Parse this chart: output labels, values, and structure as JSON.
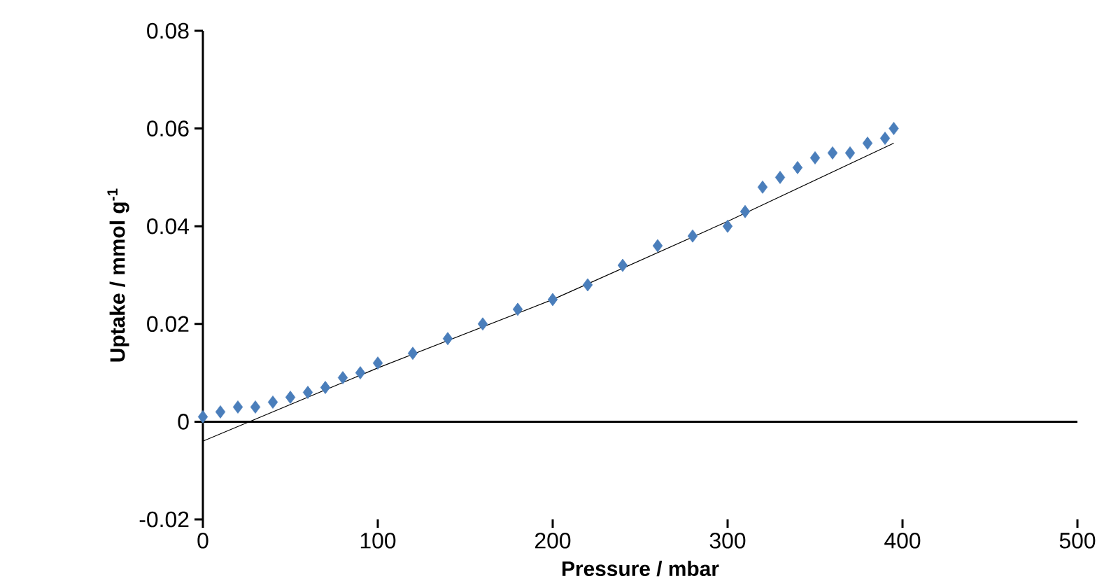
{
  "chart_data": {
    "type": "scatter",
    "xlabel": "Pressure / mbar",
    "ylabel": "Uptake / mmol g$^{-1}$",
    "xlim": [
      0,
      500
    ],
    "ylim": [
      -0.02,
      0.08
    ],
    "xticks": [
      0,
      100,
      200,
      300,
      400,
      500
    ],
    "yticks": [
      -0.02,
      0,
      0.02,
      0.04,
      0.06,
      0.08
    ],
    "series": [
      {
        "color": "#4a7ebb",
        "marker": "diamond",
        "x": [
          0,
          10,
          20,
          30,
          40,
          50,
          60,
          70,
          80,
          90,
          100,
          120,
          140,
          160,
          180,
          200,
          220,
          240,
          260,
          280,
          300,
          310,
          320,
          330,
          340,
          350,
          360,
          370,
          380,
          390,
          395
        ],
        "values": [
          0.001,
          0.002,
          0.003,
          0.003,
          0.004,
          0.005,
          0.006,
          0.007,
          0.009,
          0.01,
          0.012,
          0.014,
          0.017,
          0.02,
          0.023,
          0.025,
          0.028,
          0.032,
          0.036,
          0.038,
          0.04,
          0.043,
          0.048,
          0.05,
          0.052,
          0.054,
          0.055,
          0.055,
          0.057,
          0.058,
          0.06
        ]
      },
      {
        "type": "line",
        "color": "#000000",
        "marker": "none",
        "x": [
          0,
          100,
          200,
          300,
          395
        ],
        "values": [
          -0.004,
          0.011,
          0.025,
          0.041,
          0.057
        ]
      }
    ]
  }
}
